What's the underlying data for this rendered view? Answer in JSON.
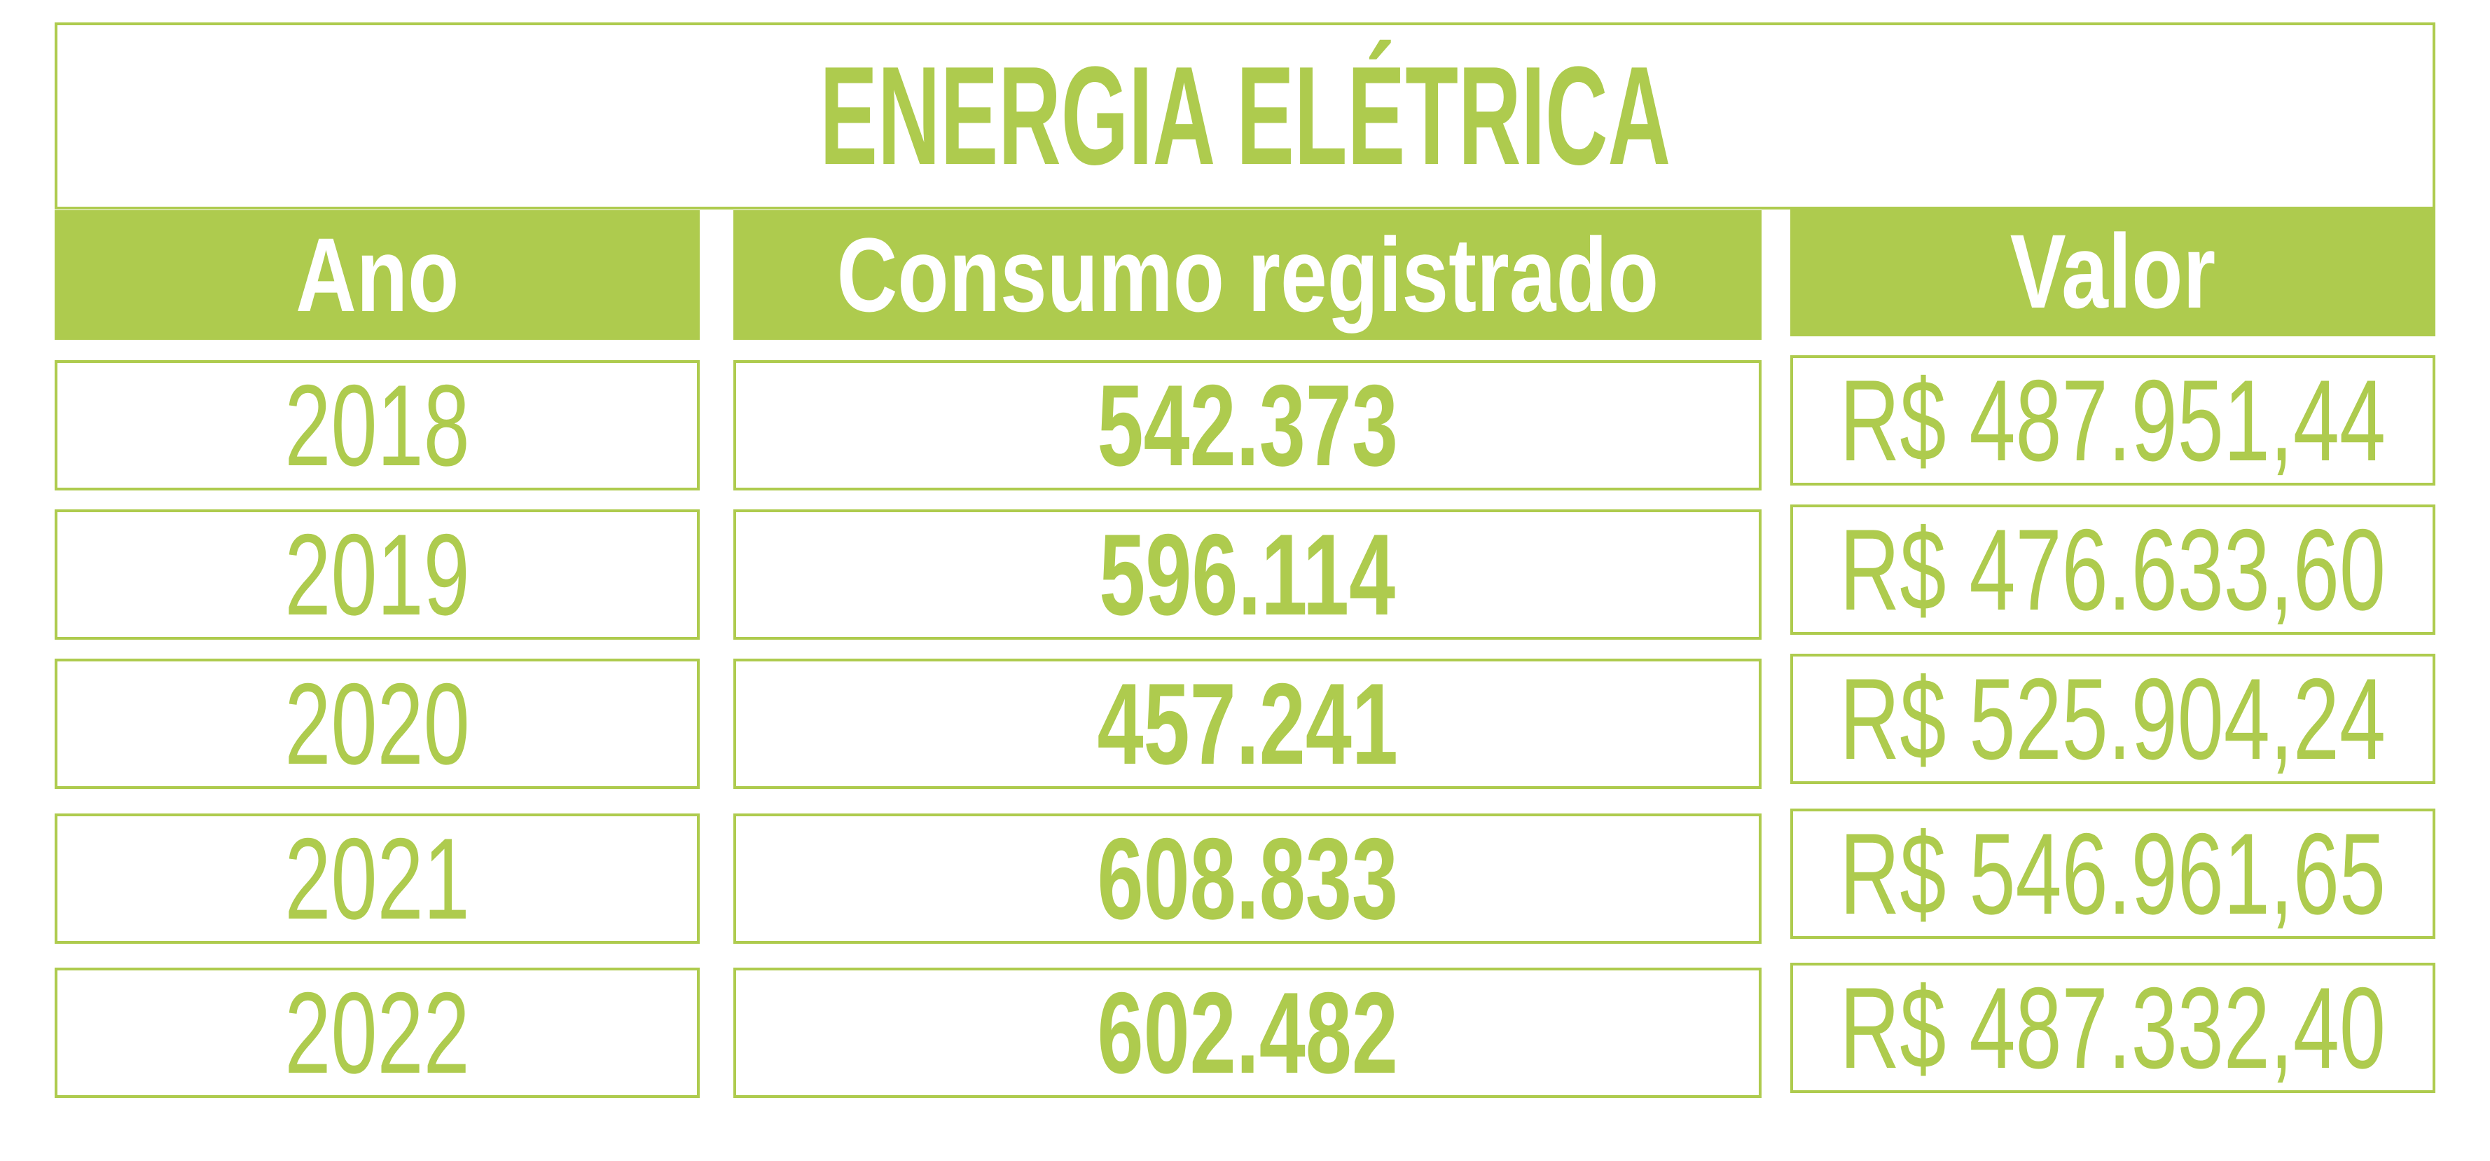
{
  "title": "ENERGIA ELÉTRICA",
  "table": {
    "headers": [
      "Ano",
      "Consumo registrado",
      "Valor"
    ],
    "rows": [
      [
        "2018",
        "542.373",
        "R$ 487.951,44"
      ],
      [
        "2019",
        "596.114",
        "R$ 476.633,60"
      ],
      [
        "2020",
        "457.241",
        "R$ 525.904,24"
      ],
      [
        "2021",
        "608.833",
        "R$ 546.961,65"
      ],
      [
        "2022",
        "602.482",
        "R$ 487.332,40"
      ]
    ]
  }
}
